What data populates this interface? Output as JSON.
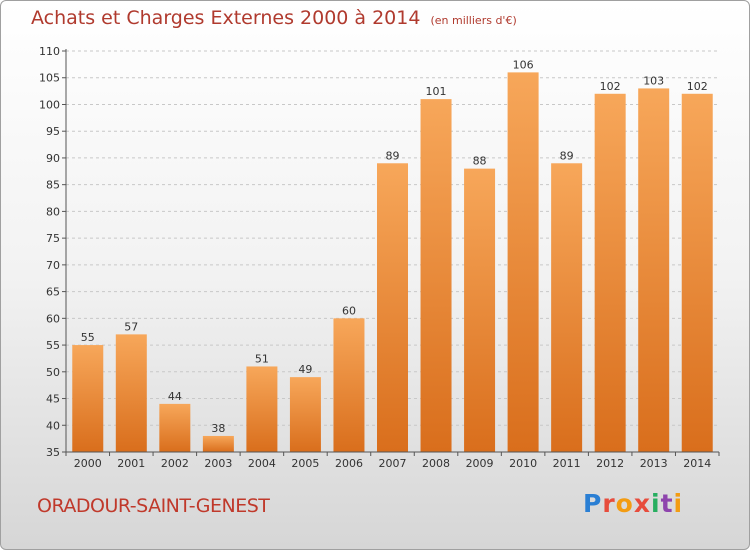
{
  "header": {
    "title": "Achats et Charges Externes 2000 à 2014",
    "unit": "(en milliers d'€)"
  },
  "footer": {
    "place": "ORADOUR-SAINT-GENEST",
    "logo": "Proxiti"
  },
  "colors": {
    "bar_top": "#f7a75a",
    "bar_bottom": "#d96e1c",
    "title": "#b03a2e"
  },
  "chart_data": {
    "type": "bar",
    "title": "Achats et Charges Externes 2000 à 2014",
    "subtitle": "(en milliers d'€)",
    "categories": [
      "2000",
      "2001",
      "2002",
      "2003",
      "2004",
      "2005",
      "2006",
      "2007",
      "2008",
      "2009",
      "2010",
      "2011",
      "2012",
      "2013",
      "2014"
    ],
    "values": [
      55,
      57,
      44,
      38,
      51,
      49,
      60,
      89,
      101,
      88,
      106,
      89,
      102,
      103,
      102
    ],
    "ylim": [
      35,
      110
    ],
    "yticks": [
      35,
      40,
      45,
      50,
      55,
      60,
      65,
      70,
      75,
      80,
      85,
      90,
      95,
      100,
      105,
      110
    ],
    "grid": true
  }
}
